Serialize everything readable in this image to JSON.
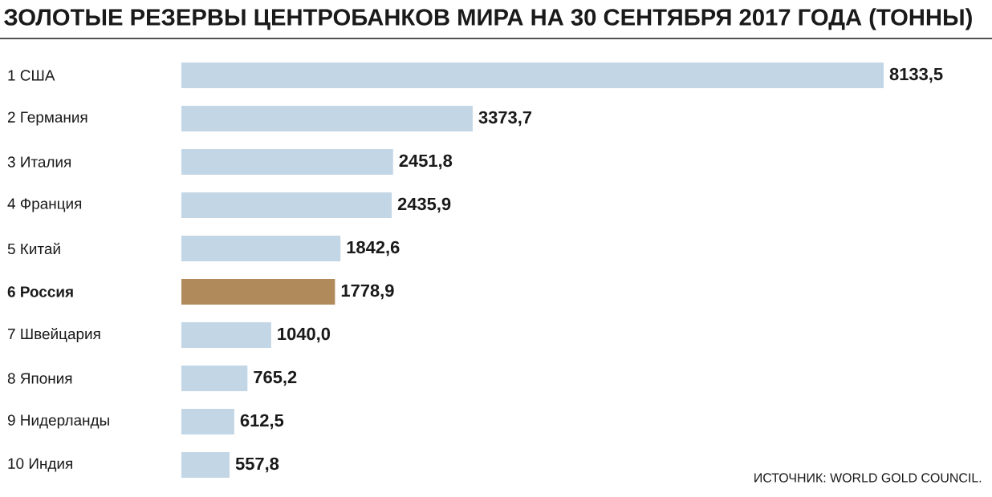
{
  "chart_data": {
    "type": "bar",
    "orientation": "horizontal",
    "title": "ЗОЛОТЫЕ РЕЗЕРВЫ ЦЕНТРОБАНКОВ МИРА НА 30 СЕНТЯБРЯ 2017 ГОДА (ТОННЫ)",
    "categories": [
      "1 США",
      "2 Германия",
      "3 Италия",
      "4 Франция",
      "5 Китай",
      "**6 Россия**",
      "7 Швейцария",
      "8 Япония",
      "9 Нидерланды",
      "10 Индия"
    ],
    "values": [
      8133.5,
      3373.7,
      2451.8,
      2435.9,
      1842.6,
      1778.9,
      1040.0,
      765.2,
      612.5,
      557.8
    ],
    "value_labels": [
      "8133,5",
      "3373,7",
      "2451,8",
      "2435,9",
      "1842,6",
      "1778,9",
      "1040,0",
      "765,2",
      "612,5",
      "557,8"
    ],
    "colors": [
      "#c3d6e6",
      "#c3d6e6",
      "#c3d6e6",
      "#c3d6e6",
      "#c3d6e6",
      "#b08a5a",
      "#c3d6e6",
      "#c3d6e6",
      "#c3d6e6",
      "#c3d6e6"
    ],
    "tick_labels": "y",
    "annotations": [
      "ИСТОЧНИК: WORLD GOLD COUNCIL."
    ]
  }
}
